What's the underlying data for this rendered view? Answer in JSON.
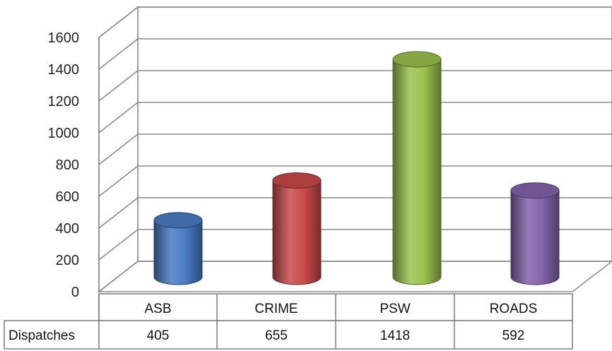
{
  "chart_data": {
    "type": "bar",
    "categories": [
      "ASB",
      "CRIME",
      "PSW",
      "ROADS"
    ],
    "series": [
      {
        "name": "Dispatches",
        "values": [
          405,
          655,
          1418,
          592
        ]
      }
    ],
    "title": "",
    "xlabel": "",
    "ylabel": "",
    "ylim": [
      0,
      1600
    ],
    "yticks": [
      0,
      200,
      400,
      600,
      800,
      1000,
      1200,
      1400,
      1600
    ],
    "grid": true,
    "legend": "data-table",
    "colors": [
      "#4a7cc4",
      "#c94a4a",
      "#9bc24e",
      "#8464ac"
    ],
    "value_labels": [
      "405",
      "655",
      "1418",
      "592"
    ]
  }
}
